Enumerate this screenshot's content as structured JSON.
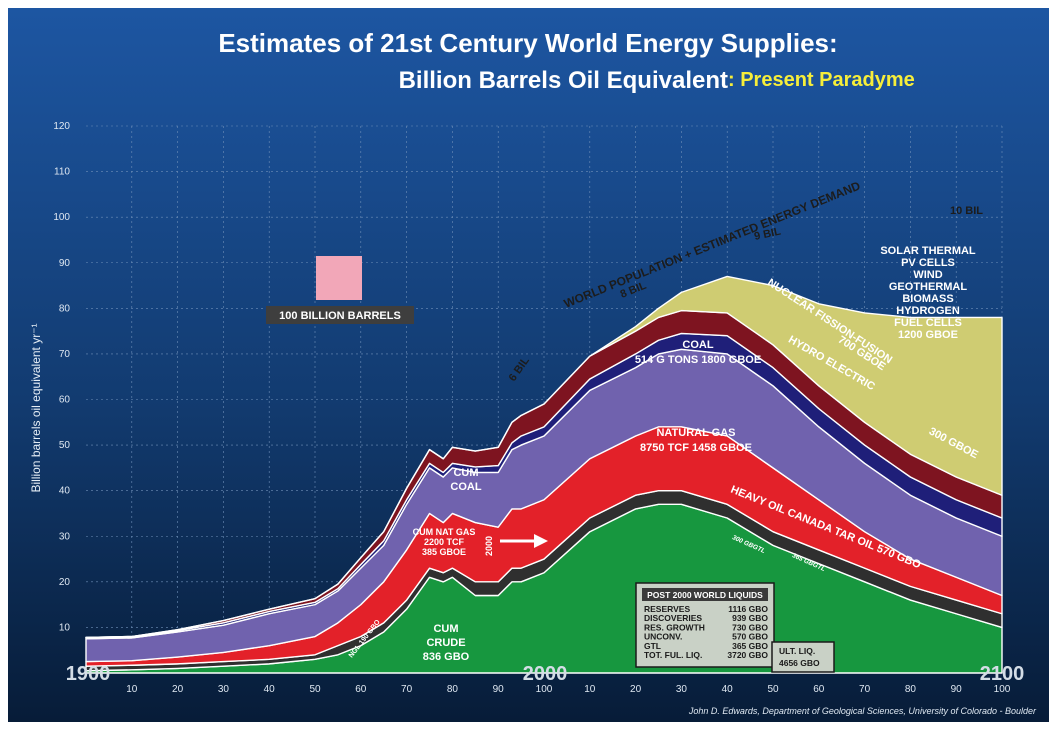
{
  "chart_data": {
    "type": "area",
    "title_line1": "Estimates of 21st Century World Energy Supplies:",
    "title_line2": "Billion Barrels Oil Equivalent",
    "subtitle": ": Present Paradyme",
    "ylabel": "Billion barrels oil equivalent yr⁻¹",
    "ylim": [
      0,
      120
    ],
    "xlim": [
      1900,
      2100
    ],
    "grid": true,
    "ytick_labels": [
      "10",
      "20",
      "30",
      "40",
      "50",
      "60",
      "70",
      "80",
      "90",
      "100",
      "110",
      "120"
    ],
    "xtick_labels": [
      "10",
      "20",
      "30",
      "40",
      "50",
      "60",
      "70",
      "80",
      "90",
      "100",
      "10",
      "20",
      "30",
      "40",
      "50",
      "60",
      "70",
      "80",
      "90",
      "100"
    ],
    "era_labels": [
      "1900",
      "2000",
      "2100"
    ],
    "x": [
      1900,
      1910,
      1920,
      1930,
      1940,
      1950,
      1955,
      1960,
      1965,
      1970,
      1975,
      1978,
      1980,
      1985,
      1990,
      1993,
      1995,
      2000,
      2010,
      2020,
      2025,
      2030,
      2040,
      2050,
      2060,
      2070,
      2080,
      2090,
      2100
    ],
    "series": [
      {
        "name": "CUM CRUDE",
        "color": "#17973f",
        "values": [
          0.5,
          0.7,
          1,
          1.5,
          2,
          3,
          4,
          6,
          9,
          14,
          21,
          20,
          21,
          17,
          17,
          20,
          20,
          22,
          31,
          36,
          37,
          37,
          34,
          28,
          24,
          20,
          16,
          13,
          10
        ]
      },
      {
        "name": "ULT. LIQ.",
        "color": "#2f2f2f",
        "values": [
          1,
          1,
          1,
          1,
          1,
          1,
          2,
          2,
          2,
          2,
          2,
          2,
          2,
          3,
          3,
          3,
          3,
          3,
          3,
          3,
          3,
          3,
          3,
          3,
          3,
          3,
          3,
          3,
          3
        ]
      },
      {
        "name": "CUM NAT GAS",
        "color": "#e32129",
        "values": [
          1,
          1,
          1.5,
          2,
          3,
          4,
          5,
          7,
          9,
          11,
          12,
          11,
          12,
          13,
          12,
          13,
          13,
          13,
          13,
          13,
          14,
          14,
          15,
          14,
          11,
          8,
          6,
          5,
          4
        ]
      },
      {
        "name": "CUM COAL",
        "color": "#7062ae",
        "values": [
          5,
          5,
          5.5,
          6,
          7,
          7,
          7,
          8,
          8,
          10,
          10,
          10,
          10,
          11,
          12,
          13,
          14,
          14,
          15,
          15,
          16,
          17,
          18,
          18,
          16,
          15,
          14,
          13,
          13
        ]
      },
      {
        "name": "HYDRO ELECTRIC",
        "color": "#1f1f79",
        "values": [
          0.3,
          0.3,
          0.3,
          0.5,
          0.5,
          0.5,
          0.5,
          0.8,
          1,
          1,
          1,
          1,
          1,
          1.2,
          1.5,
          1.5,
          2,
          2,
          2.5,
          3,
          3,
          3.5,
          4,
          4,
          4,
          4,
          4,
          4,
          4
        ]
      },
      {
        "name": "NUCLEAR FISSION-FUSION",
        "color": "#7e1420",
        "values": [
          0,
          0,
          0.2,
          0.5,
          0.5,
          0.8,
          1,
          1.5,
          2,
          2.5,
          3,
          3,
          3.5,
          3.5,
          4,
          4.5,
          4.5,
          5,
          5,
          5,
          5,
          5,
          5,
          5,
          5,
          5,
          5,
          5,
          5
        ]
      },
      {
        "name": "SOLAR THERMAL",
        "color": "#cfcc72",
        "values": [
          0,
          0,
          0,
          0,
          0,
          0,
          0,
          0,
          0,
          0,
          0,
          0,
          0,
          0,
          0,
          0,
          0,
          0,
          0,
          1,
          2,
          4,
          8,
          13,
          18,
          24,
          30,
          35,
          39
        ]
      }
    ],
    "annotations": {
      "demand_curve": "WORLD POPULATION + ESTIMATED ENERGY DEMAND",
      "population_6": "6 BIL",
      "population_8": "8 BIL",
      "population_9": "9 BIL",
      "population_10": "10 BIL",
      "legend_scale": "100 BILLION BARRELS",
      "cum_coal": [
        "CUM",
        "COAL"
      ],
      "coal": [
        "COAL",
        "514 G TONS  1800 GBOE"
      ],
      "natural_gas": [
        "NATURAL GAS",
        "8750 TCF  1458 GBOE"
      ],
      "cum_nat_gas": [
        "CUM NAT GAS",
        "2200 TCF",
        "385 GBOE"
      ],
      "cum_nat_gas_year": "2000",
      "cum_crude": [
        "CUM",
        "CRUDE",
        "836 GBO"
      ],
      "ngl": "NGL 190 GBO",
      "nuclear": [
        "NUCLEAR FISSION-FUSION",
        "700 GBOE"
      ],
      "hydro": [
        "HYDRO  ELECTRIC",
        "300 GBOE"
      ],
      "heavy_oil": "HEAVY  OIL  CANADA  TAR  OIL     570 GBO",
      "gtl_band1": "300 GBGTL",
      "gtl_band2": "365 GBGTL",
      "solar": [
        "SOLAR THERMAL",
        "PV CELLS",
        "WIND",
        "GEOTHERMAL",
        "BIOMASS",
        "HYDROGEN",
        "FUEL CELLS",
        "1200 GBOE"
      ],
      "ult_liq": [
        "ULT. LIQ.",
        "4656 GBO"
      ]
    },
    "post2000_table": {
      "title": "POST 2000 WORLD LIQUIDS",
      "rows": [
        [
          "RESERVES",
          "1116 GBO"
        ],
        [
          "DISCOVERIES",
          "939 GBO"
        ],
        [
          "RES. GROWTH",
          "730 GBO"
        ],
        [
          "UNCONV.",
          "570 GBO"
        ],
        [
          "GTL",
          "365 GBO"
        ],
        [
          "TOT. FUL. LIQ.",
          "3720 GBO"
        ]
      ]
    },
    "credit": "John D. Edwards, Department of Geological Sciences, University of Colorado - Boulder"
  },
  "colors": {
    "background_top": "#1d56a2",
    "background_bottom": "#071c38",
    "separator": "#ffffff"
  }
}
